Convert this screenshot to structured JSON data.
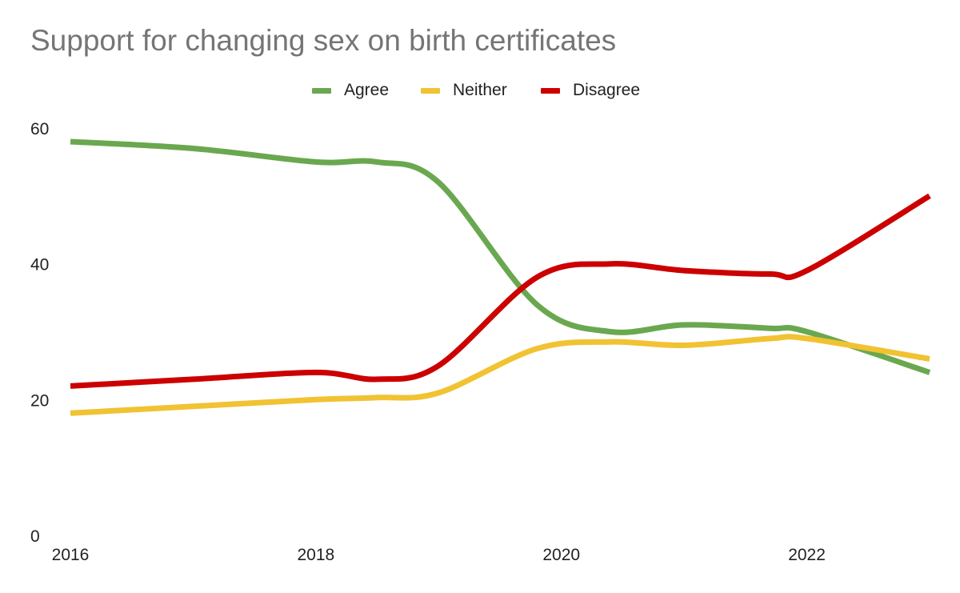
{
  "chart_data": {
    "type": "line",
    "title": "Support for changing sex on birth certificates",
    "xlabel": "",
    "ylabel": "",
    "x": [
      2016,
      2017,
      2018,
      2018.5,
      2019,
      2019.8,
      2020.4,
      2021,
      2021.7,
      2022,
      2023
    ],
    "xlim": [
      2016,
      2023
    ],
    "ylim": [
      0,
      60
    ],
    "x_ticks": [
      "2016",
      "2018",
      "2020",
      "2022"
    ],
    "y_ticks": [
      "0",
      "20",
      "40",
      "60"
    ],
    "grid": false,
    "legend_position": "top-center",
    "series": [
      {
        "name": "Agree",
        "color": "#6aa84f",
        "values": [
          58,
          57,
          55,
          55,
          52,
          34,
          30,
          31,
          30.5,
          30,
          24
        ]
      },
      {
        "name": "Neither",
        "color": "#f1c232",
        "values": [
          18,
          19,
          20,
          20.3,
          21,
          27.5,
          28.5,
          28,
          29,
          29,
          26
        ]
      },
      {
        "name": "Disagree",
        "color": "#cc0000",
        "values": [
          22,
          23,
          24,
          23,
          25,
          38,
          40,
          39,
          38.5,
          39,
          50
        ]
      }
    ]
  }
}
